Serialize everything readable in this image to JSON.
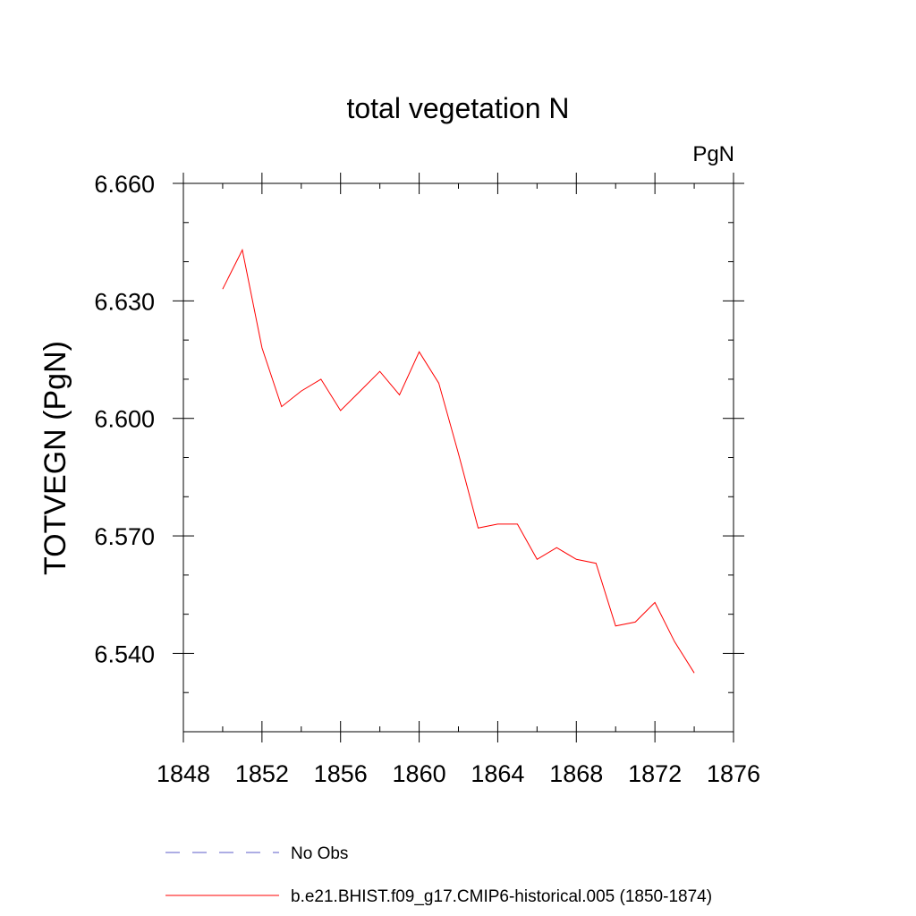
{
  "chart_data": {
    "type": "line",
    "title": "total vegetation N",
    "units_label": "PgN",
    "ylabel": "TOTVEGN  (PgN)",
    "xlabel": "",
    "xlim": [
      1848,
      1876
    ],
    "ylim": [
      6.52,
      6.66
    ],
    "x_ticks": [
      1848,
      1852,
      1856,
      1860,
      1864,
      1868,
      1872,
      1876
    ],
    "x_tick_labels": [
      "1848",
      "1852",
      "1856",
      "1860",
      "1864",
      "1868",
      "1872",
      "1876"
    ],
    "y_ticks": [
      6.54,
      6.57,
      6.6,
      6.63,
      6.66
    ],
    "y_tick_labels": [
      "6.540",
      "6.570",
      "6.600",
      "6.630",
      "6.660"
    ],
    "grid": false,
    "legend_position": "bottom",
    "legend": [
      {
        "label": "No Obs",
        "color": "#5b5bc8",
        "style": "dashed"
      },
      {
        "label": "b.e21.BHIST.f09_g17.CMIP6-historical.005 (1850-1874)",
        "color": "#ff0000",
        "style": "solid"
      }
    ],
    "series": [
      {
        "name": "b.e21.BHIST.f09_g17.CMIP6-historical.005 (1850-1874)",
        "color": "#ff0000",
        "x": [
          1850,
          1851,
          1852,
          1853,
          1854,
          1855,
          1856,
          1857,
          1858,
          1859,
          1860,
          1861,
          1862,
          1863,
          1864,
          1865,
          1866,
          1867,
          1868,
          1869,
          1870,
          1871,
          1872,
          1873,
          1874
        ],
        "y": [
          6.633,
          6.643,
          6.618,
          6.603,
          6.607,
          6.61,
          6.602,
          6.607,
          6.612,
          6.606,
          6.617,
          6.609,
          6.591,
          6.572,
          6.573,
          6.573,
          6.564,
          6.567,
          6.564,
          6.563,
          6.547,
          6.548,
          6.553,
          6.543,
          6.535
        ]
      }
    ]
  }
}
